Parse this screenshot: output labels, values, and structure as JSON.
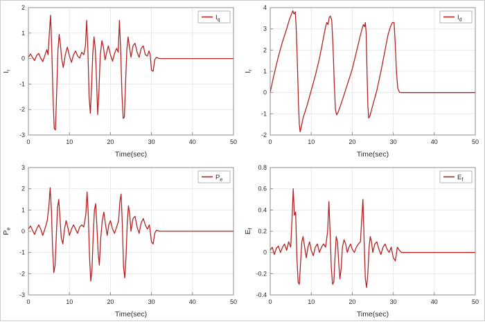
{
  "figure": {
    "title": "",
    "background": "#ffffff"
  },
  "colors": {
    "trace": "#b22222",
    "axis_text": "#262626",
    "box": "#8c8c8c",
    "grid": "#e8e8e8",
    "legend_border": "#a3a3a3",
    "background": "#ffffff"
  },
  "chart_data": [
    {
      "type": "line",
      "id": "iq",
      "xlabel": "Time(sec)",
      "ylabel": {
        "main": "I",
        "sub": "r"
      },
      "legend": {
        "main": "I",
        "sub": "q"
      },
      "xlim": [
        0,
        50
      ],
      "ylim": [
        -3,
        2
      ],
      "xticks": [
        "0",
        "10",
        "20",
        "30",
        "40",
        "50"
      ],
      "yticks": [
        "-3",
        "-2",
        "-1",
        "0",
        "1",
        "2"
      ],
      "grid": true,
      "legend_position": "top-right",
      "points": [
        [
          0,
          0.05
        ],
        [
          0.5,
          0.18
        ],
        [
          1,
          0.05
        ],
        [
          1.5,
          -0.08
        ],
        [
          2,
          0.12
        ],
        [
          2.5,
          0.2
        ],
        [
          3,
          0.02
        ],
        [
          3.5,
          -0.12
        ],
        [
          4,
          0.12
        ],
        [
          4.5,
          0.35
        ],
        [
          4.8,
          0.15
        ],
        [
          5.1,
          1.0
        ],
        [
          5.4,
          1.7
        ],
        [
          5.7,
          0.4
        ],
        [
          6.0,
          -1.5
        ],
        [
          6.3,
          -2.75
        ],
        [
          6.6,
          -2.8
        ],
        [
          6.9,
          -1.3
        ],
        [
          7.2,
          0.3
        ],
        [
          7.5,
          0.95
        ],
        [
          7.8,
          0.55
        ],
        [
          8.1,
          0.0
        ],
        [
          8.5,
          -0.35
        ],
        [
          9,
          0.15
        ],
        [
          9.5,
          0.45
        ],
        [
          10,
          0.1
        ],
        [
          10.5,
          -0.15
        ],
        [
          11,
          0.15
        ],
        [
          11.5,
          0.3
        ],
        [
          12,
          0.1
        ],
        [
          12.5,
          0.02
        ],
        [
          13,
          0.25
        ],
        [
          13.5,
          0.15
        ],
        [
          13.9,
          0.5
        ],
        [
          14.2,
          1.5
        ],
        [
          14.5,
          0.4
        ],
        [
          14.8,
          -1.5
        ],
        [
          15.1,
          -2.15
        ],
        [
          15.4,
          -1.1
        ],
        [
          15.7,
          0.2
        ],
        [
          16.0,
          0.85
        ],
        [
          16.3,
          0.4
        ],
        [
          16.6,
          -0.8
        ],
        [
          16.9,
          -2.2
        ],
        [
          17.2,
          -1.3
        ],
        [
          17.5,
          0.1
        ],
        [
          17.9,
          0.7
        ],
        [
          18.3,
          0.45
        ],
        [
          18.7,
          -0.05
        ],
        [
          19.1,
          0.25
        ],
        [
          19.5,
          0.5
        ],
        [
          20,
          0.15
        ],
        [
          20.5,
          -0.1
        ],
        [
          21,
          0.2
        ],
        [
          21.5,
          0.4
        ],
        [
          21.9,
          0.25
        ],
        [
          22.2,
          1.5
        ],
        [
          22.5,
          0.3
        ],
        [
          22.8,
          -1.4
        ],
        [
          23.1,
          -2.35
        ],
        [
          23.4,
          -2.3
        ],
        [
          23.7,
          -0.9
        ],
        [
          24.0,
          0.35
        ],
        [
          24.3,
          0.85
        ],
        [
          24.6,
          0.5
        ],
        [
          25,
          0.05
        ],
        [
          25.5,
          0.5
        ],
        [
          26,
          0.6
        ],
        [
          26.5,
          0.25
        ],
        [
          27,
          0.05
        ],
        [
          27.5,
          0.4
        ],
        [
          28,
          0.5
        ],
        [
          28.5,
          0.15
        ],
        [
          29,
          0.1
        ],
        [
          29.4,
          0.3
        ],
        [
          29.7,
          0.15
        ],
        [
          30.0,
          -0.45
        ],
        [
          30.4,
          -0.5
        ],
        [
          30.8,
          -0.05
        ],
        [
          31.2,
          0.05
        ],
        [
          32,
          0
        ],
        [
          34,
          0
        ],
        [
          38,
          0
        ],
        [
          42,
          0
        ],
        [
          46,
          0
        ],
        [
          50,
          0
        ]
      ]
    },
    {
      "type": "line",
      "id": "id",
      "xlabel": "Time(sec)",
      "ylabel": {
        "main": "I",
        "sub": "r"
      },
      "legend": {
        "main": "I",
        "sub": "d"
      },
      "xlim": [
        0,
        50
      ],
      "ylim": [
        -2,
        4
      ],
      "xticks": [
        "0",
        "10",
        "20",
        "30",
        "40",
        "50"
      ],
      "yticks": [
        "-2",
        "-1",
        "0",
        "1",
        "2",
        "3",
        "4"
      ],
      "grid": true,
      "legend_position": "top-right",
      "points": [
        [
          0,
          0
        ],
        [
          0.3,
          0.3
        ],
        [
          1,
          0.9
        ],
        [
          2,
          1.7
        ],
        [
          3,
          2.4
        ],
        [
          4,
          3.0
        ],
        [
          4.7,
          3.45
        ],
        [
          5.2,
          3.7
        ],
        [
          5.5,
          3.85
        ],
        [
          5.8,
          3.7
        ],
        [
          6.1,
          3.8
        ],
        [
          6.3,
          3.2
        ],
        [
          6.6,
          1.5
        ],
        [
          6.9,
          -0.5
        ],
        [
          7.1,
          -1.5
        ],
        [
          7.3,
          -1.85
        ],
        [
          7.6,
          -1.6
        ],
        [
          8,
          -1.2
        ],
        [
          9,
          -0.6
        ],
        [
          10,
          0.1
        ],
        [
          11,
          0.8
        ],
        [
          12,
          1.6
        ],
        [
          13,
          2.6
        ],
        [
          13.5,
          3.1
        ],
        [
          13.8,
          3.3
        ],
        [
          14.1,
          3.2
        ],
        [
          14.4,
          3.55
        ],
        [
          14.7,
          3.6
        ],
        [
          15,
          3.4
        ],
        [
          15.3,
          2.2
        ],
        [
          15.6,
          0.5
        ],
        [
          15.9,
          -0.8
        ],
        [
          16.2,
          -1.05
        ],
        [
          16.5,
          -0.95
        ],
        [
          17,
          -0.7
        ],
        [
          18,
          -0.1
        ],
        [
          19,
          0.5
        ],
        [
          20,
          1.1
        ],
        [
          21,
          1.9
        ],
        [
          22,
          2.7
        ],
        [
          22.4,
          3.0
        ],
        [
          22.7,
          3.2
        ],
        [
          23,
          3.1
        ],
        [
          23.2,
          3.3
        ],
        [
          23.4,
          2.8
        ],
        [
          23.6,
          1.0
        ],
        [
          23.8,
          -0.6
        ],
        [
          24,
          -1.2
        ],
        [
          24.3,
          -1.1
        ],
        [
          25,
          -0.6
        ],
        [
          26,
          0.1
        ],
        [
          27,
          1.0
        ],
        [
          28,
          2.0
        ],
        [
          28.7,
          2.7
        ],
        [
          29.3,
          3.1
        ],
        [
          29.8,
          3.3
        ],
        [
          30.2,
          3.3
        ],
        [
          30.5,
          2.2
        ],
        [
          30.8,
          0.9
        ],
        [
          31.1,
          0.2
        ],
        [
          31.5,
          0.02
        ],
        [
          32,
          0
        ],
        [
          35,
          0
        ],
        [
          40,
          0
        ],
        [
          45,
          0
        ],
        [
          50,
          0
        ]
      ]
    },
    {
      "type": "line",
      "id": "pe",
      "xlabel": "Time(sec)",
      "ylabel": {
        "main": "P",
        "sub": "e"
      },
      "legend": {
        "main": "P",
        "sub": "e"
      },
      "xlim": [
        0,
        50
      ],
      "ylim": [
        -3,
        3
      ],
      "xticks": [
        "0",
        "10",
        "20",
        "30",
        "40",
        "50"
      ],
      "yticks": [
        "-3",
        "-2",
        "-1",
        "0",
        "1",
        "2",
        "3"
      ],
      "grid": true,
      "legend_position": "top-right",
      "points": [
        [
          0,
          0.1
        ],
        [
          0.5,
          0.25
        ],
        [
          1,
          0.05
        ],
        [
          1.5,
          -0.15
        ],
        [
          2,
          0.1
        ],
        [
          2.5,
          0.3
        ],
        [
          3,
          0.1
        ],
        [
          3.5,
          -0.2
        ],
        [
          4,
          0.1
        ],
        [
          4.6,
          0.5
        ],
        [
          5.0,
          1.2
        ],
        [
          5.3,
          2.05
        ],
        [
          5.6,
          1.0
        ],
        [
          5.9,
          -0.8
        ],
        [
          6.2,
          -1.95
        ],
        [
          6.5,
          -1.6
        ],
        [
          6.8,
          -0.2
        ],
        [
          7.1,
          1.1
        ],
        [
          7.4,
          1.5
        ],
        [
          7.7,
          0.6
        ],
        [
          8,
          -0.3
        ],
        [
          8.4,
          -0.6
        ],
        [
          8.8,
          0.1
        ],
        [
          9.2,
          0.5
        ],
        [
          9.6,
          0.2
        ],
        [
          10,
          -0.2
        ],
        [
          10.5,
          0.1
        ],
        [
          11,
          0.3
        ],
        [
          11.5,
          0.1
        ],
        [
          12,
          -0.1
        ],
        [
          12.5,
          0.2
        ],
        [
          13,
          0.3
        ],
        [
          13.5,
          0.2
        ],
        [
          14,
          0.8
        ],
        [
          14.3,
          1.85
        ],
        [
          14.6,
          0.8
        ],
        [
          14.9,
          -1.2
        ],
        [
          15.2,
          -2.35
        ],
        [
          15.5,
          -1.8
        ],
        [
          15.8,
          -0.2
        ],
        [
          16.1,
          1.0
        ],
        [
          16.4,
          1.3
        ],
        [
          16.7,
          0.2
        ],
        [
          17,
          -1.0
        ],
        [
          17.3,
          -1.6
        ],
        [
          17.6,
          -0.4
        ],
        [
          18,
          0.5
        ],
        [
          18.4,
          0.9
        ],
        [
          18.8,
          0.3
        ],
        [
          19.2,
          -0.2
        ],
        [
          19.6,
          0.3
        ],
        [
          20,
          0.5
        ],
        [
          20.5,
          0.1
        ],
        [
          21,
          -0.1
        ],
        [
          21.5,
          0.2
        ],
        [
          22,
          0.5
        ],
        [
          22.3,
          1.4
        ],
        [
          22.6,
          1.75
        ],
        [
          22.9,
          0.3
        ],
        [
          23.2,
          -1.7
        ],
        [
          23.5,
          -2.2
        ],
        [
          23.8,
          -1.2
        ],
        [
          24.1,
          0.4
        ],
        [
          24.4,
          1.2
        ],
        [
          24.7,
          0.8
        ],
        [
          25,
          0
        ],
        [
          25.5,
          0.6
        ],
        [
          26,
          0.7
        ],
        [
          26.5,
          0.2
        ],
        [
          27,
          -0.1
        ],
        [
          27.5,
          0.4
        ],
        [
          28,
          0.6
        ],
        [
          28.5,
          0.3
        ],
        [
          29,
          0.1
        ],
        [
          29.5,
          0.3
        ],
        [
          30,
          -0.5
        ],
        [
          30.4,
          -0.6
        ],
        [
          30.8,
          -0.1
        ],
        [
          31.2,
          0.05
        ],
        [
          32,
          0
        ],
        [
          35,
          0
        ],
        [
          40,
          0
        ],
        [
          45,
          0
        ],
        [
          50,
          0
        ]
      ]
    },
    {
      "type": "line",
      "id": "ef",
      "xlabel": "Time(sec)",
      "ylabel": {
        "main": "E",
        "sub": "f"
      },
      "legend": {
        "main": "E",
        "sub": "f"
      },
      "xlim": [
        0,
        50
      ],
      "ylim": [
        -0.4,
        0.8
      ],
      "xticks": [
        "0",
        "10",
        "20",
        "30",
        "40",
        "50"
      ],
      "yticks": [
        "-0.4",
        "-0.2",
        "0",
        "0.2",
        "0.4",
        "0.6",
        "0.8"
      ],
      "grid": true,
      "legend_position": "top-right",
      "points": [
        [
          0,
          0.02
        ],
        [
          0.5,
          0.05
        ],
        [
          1,
          -0.02
        ],
        [
          1.5,
          0.04
        ],
        [
          2,
          0.06
        ],
        [
          2.5,
          0.0
        ],
        [
          3,
          0.05
        ],
        [
          3.5,
          0.08
        ],
        [
          4,
          0.02
        ],
        [
          4.5,
          0.1
        ],
        [
          5,
          0.05
        ],
        [
          5.3,
          0.3
        ],
        [
          5.6,
          0.6
        ],
        [
          5.9,
          0.35
        ],
        [
          6.2,
          0.38
        ],
        [
          6.5,
          -0.05
        ],
        [
          6.8,
          -0.28
        ],
        [
          7.1,
          -0.3
        ],
        [
          7.4,
          -0.1
        ],
        [
          7.7,
          0.1
        ],
        [
          8,
          0.15
        ],
        [
          8.4,
          0.05
        ],
        [
          8.8,
          -0.05
        ],
        [
          9.2,
          0.05
        ],
        [
          9.6,
          0.1
        ],
        [
          10,
          0.02
        ],
        [
          10.5,
          -0.03
        ],
        [
          11,
          0.05
        ],
        [
          11.5,
          0.08
        ],
        [
          12,
          0.0
        ],
        [
          12.5,
          0.05
        ],
        [
          13,
          0.08
        ],
        [
          13.5,
          0.05
        ],
        [
          14,
          0.2
        ],
        [
          14.3,
          0.48
        ],
        [
          14.6,
          0.2
        ],
        [
          14.9,
          -0.15
        ],
        [
          15.2,
          -0.3
        ],
        [
          15.5,
          -0.28
        ],
        [
          15.8,
          -0.05
        ],
        [
          16.1,
          0.15
        ],
        [
          16.4,
          0.1
        ],
        [
          16.7,
          -0.1
        ],
        [
          17,
          -0.25
        ],
        [
          17.3,
          -0.15
        ],
        [
          17.6,
          0.05
        ],
        [
          18,
          0.12
        ],
        [
          18.4,
          0.08
        ],
        [
          18.8,
          0
        ],
        [
          19.2,
          0.05
        ],
        [
          19.6,
          0.08
        ],
        [
          20,
          0.03
        ],
        [
          20.5,
          0
        ],
        [
          21,
          0.05
        ],
        [
          21.5,
          0.08
        ],
        [
          22,
          0.1
        ],
        [
          22.3,
          0.3
        ],
        [
          22.6,
          0.5
        ],
        [
          22.9,
          0.1
        ],
        [
          23.2,
          -0.25
        ],
        [
          23.5,
          -0.33
        ],
        [
          23.8,
          -0.2
        ],
        [
          24.1,
          0.05
        ],
        [
          24.4,
          0.15
        ],
        [
          24.7,
          0.1
        ],
        [
          25,
          0
        ],
        [
          25.5,
          0.08
        ],
        [
          26,
          0.1
        ],
        [
          26.5,
          0.03
        ],
        [
          27,
          -0.02
        ],
        [
          27.5,
          0.05
        ],
        [
          28,
          0.08
        ],
        [
          28.5,
          0.03
        ],
        [
          29,
          0
        ],
        [
          29.5,
          0.05
        ],
        [
          30,
          -0.05
        ],
        [
          30.5,
          -0.08
        ],
        [
          31,
          0.05
        ],
        [
          31.5,
          0.02
        ],
        [
          32,
          0
        ],
        [
          35,
          0
        ],
        [
          40,
          0
        ],
        [
          45,
          0
        ],
        [
          50,
          0
        ]
      ]
    }
  ]
}
